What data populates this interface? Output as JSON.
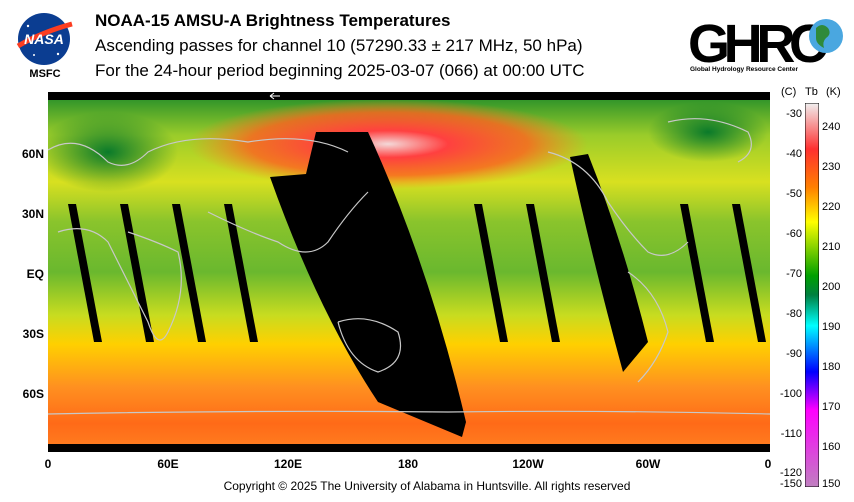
{
  "header": {
    "title": "NOAA-15 AMSU-A Brightness Temperatures",
    "subtitle": "Ascending passes for channel 10 (57290.33 ± 217 MHz, 50 hPa)",
    "period": "For the 24-hour period beginning 2025-03-07 (066) at 00:00 UTC"
  },
  "logos": {
    "nasa_text": "NASA",
    "nasa_label": "MSFC",
    "ghrc_text": "GHRC",
    "ghrc_subtitle": "Global Hydrology Resource Center"
  },
  "map": {
    "lat_labels": [
      "60N",
      "30N",
      "EQ",
      "30S",
      "60S"
    ],
    "lon_labels": [
      "0",
      "60E",
      "120E",
      "180",
      "120W",
      "60W",
      "0"
    ],
    "no_data_color": "#000000",
    "coastline_color": "#c8c8c8"
  },
  "colorbar": {
    "header_c": "(C)",
    "header_tb": "Tb",
    "header_k": "(K)",
    "celsius_ticks": [
      "-30",
      "-40",
      "-50",
      "-60",
      "-70",
      "-80",
      "-90",
      "-100",
      "-110",
      "-120",
      "-150"
    ],
    "kelvin_ticks": [
      "240",
      "230",
      "220",
      "210",
      "200",
      "190",
      "180",
      "170",
      "160",
      "150"
    ],
    "colors": [
      "#f0f0f0",
      "#ff0000",
      "#ffff00",
      "#00a000",
      "#00ffff",
      "#0000ff",
      "#c080c0"
    ]
  },
  "footer": {
    "copyright": "Copyright © 2025 The University of Alabama in Huntsville.  All rights reserved"
  }
}
